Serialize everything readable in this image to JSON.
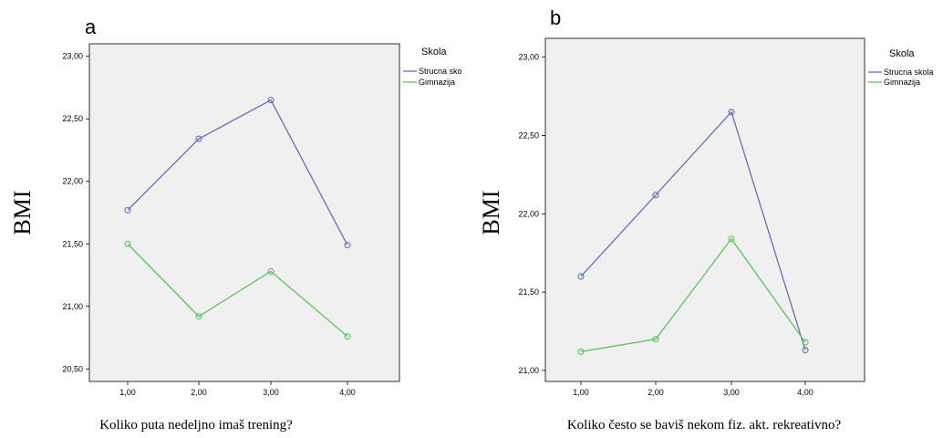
{
  "chart_data": [
    {
      "id": "a",
      "type": "line",
      "panel_label": "a",
      "xlabel": "Koliko puta nedeljno imaš trening?",
      "ylabel": "BMI",
      "categories": [
        "1,00",
        "2,00",
        "3,00",
        "4,00"
      ],
      "y_ticks": [
        "20,50",
        "21,00",
        "21,50",
        "22,00",
        "22,50",
        "23,00"
      ],
      "ylim": [
        20.4,
        23.1
      ],
      "legend_title": "Skola",
      "legend_position": "top-right",
      "series": [
        {
          "name": "Strucna sko",
          "color": "#6371b7",
          "values": [
            21.77,
            22.34,
            22.65,
            21.49
          ]
        },
        {
          "name": "Gimnazija",
          "color": "#5cc25c",
          "values": [
            21.5,
            20.92,
            21.28,
            20.76
          ]
        }
      ],
      "plot_background": "#f0f0f0",
      "grid": false
    },
    {
      "id": "b",
      "type": "line",
      "panel_label": "b",
      "xlabel": "Koliko često se baviš nekom fiz. akt. rekreativno?",
      "ylabel": "BMI",
      "categories": [
        "1,00",
        "2,00",
        "3,00",
        "4,00"
      ],
      "y_ticks": [
        "21,00",
        "21,50",
        "22,00",
        "22,50",
        "23,00"
      ],
      "ylim": [
        20.93,
        23.12
      ],
      "legend_title": "Skola",
      "legend_position": "top-right",
      "series": [
        {
          "name": "Strucna skola",
          "color": "#6371b7",
          "values": [
            21.6,
            22.12,
            22.65,
            21.13
          ]
        },
        {
          "name": "Gimnazija",
          "color": "#5cc25c",
          "values": [
            21.12,
            21.2,
            21.84,
            21.18
          ]
        }
      ],
      "plot_background": "#f0f0f0",
      "grid": false
    }
  ]
}
